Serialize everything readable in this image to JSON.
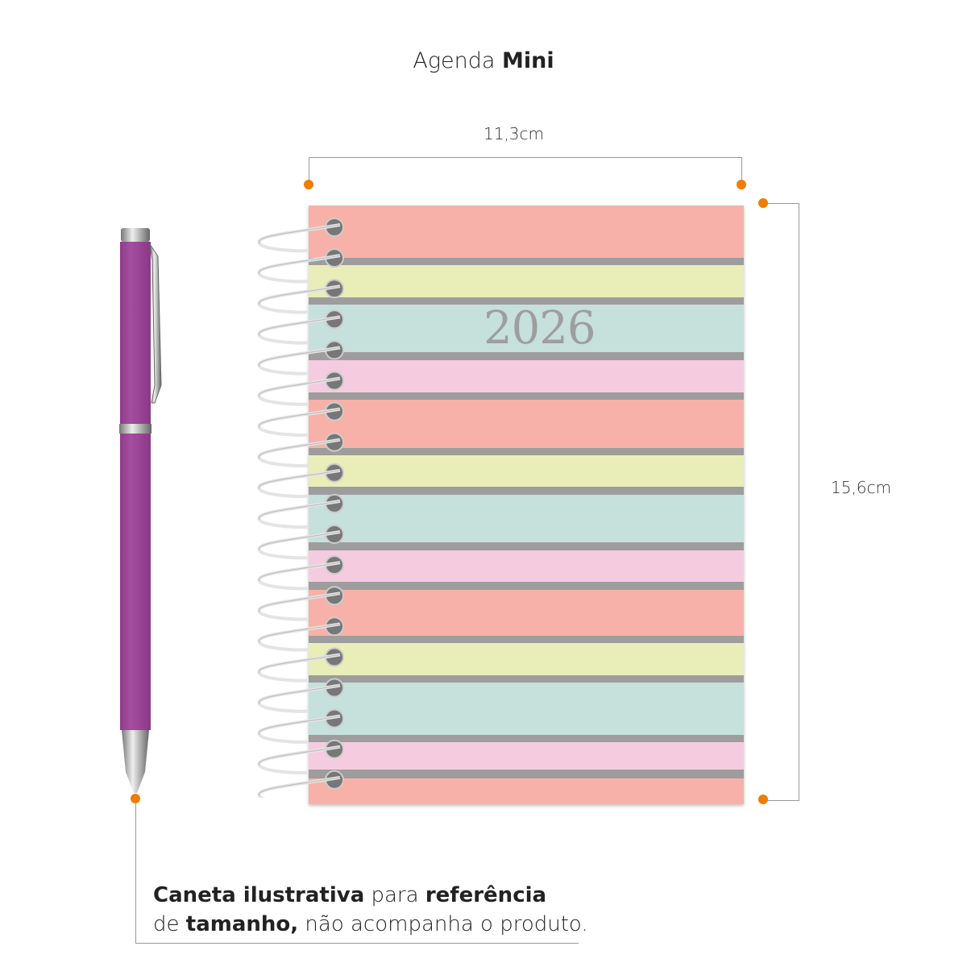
{
  "title": {
    "part1": "Agenda",
    "part2": "Mini"
  },
  "dimensions": {
    "width": "11,3cm",
    "height": "15,6cm"
  },
  "cover": {
    "year": "2026",
    "stripe_colors": {
      "salmon": "#f7b1a8",
      "yellow": "#e9edb8",
      "teal": "#c6e0dc",
      "pink": "#f5ccdf",
      "gray": "#9d9d9d"
    },
    "stripe_pattern": [
      "salmon",
      "yellow",
      "teal",
      "pink",
      "salmon",
      "yellow",
      "teal",
      "pink",
      "salmon",
      "yellow",
      "teal",
      "pink",
      "salmon"
    ],
    "spiral_rings": 19
  },
  "pen": {
    "body_color": "#a54ea0",
    "clip_color": "#c0c0c0"
  },
  "accent_color": "#f07c00",
  "note": {
    "line1": {
      "a": "Caneta ilustrativa",
      "b": " para ",
      "c": "referência"
    },
    "line2": {
      "a": "de ",
      "b": "tamanho,",
      "c": " não acompanha o produto."
    }
  }
}
